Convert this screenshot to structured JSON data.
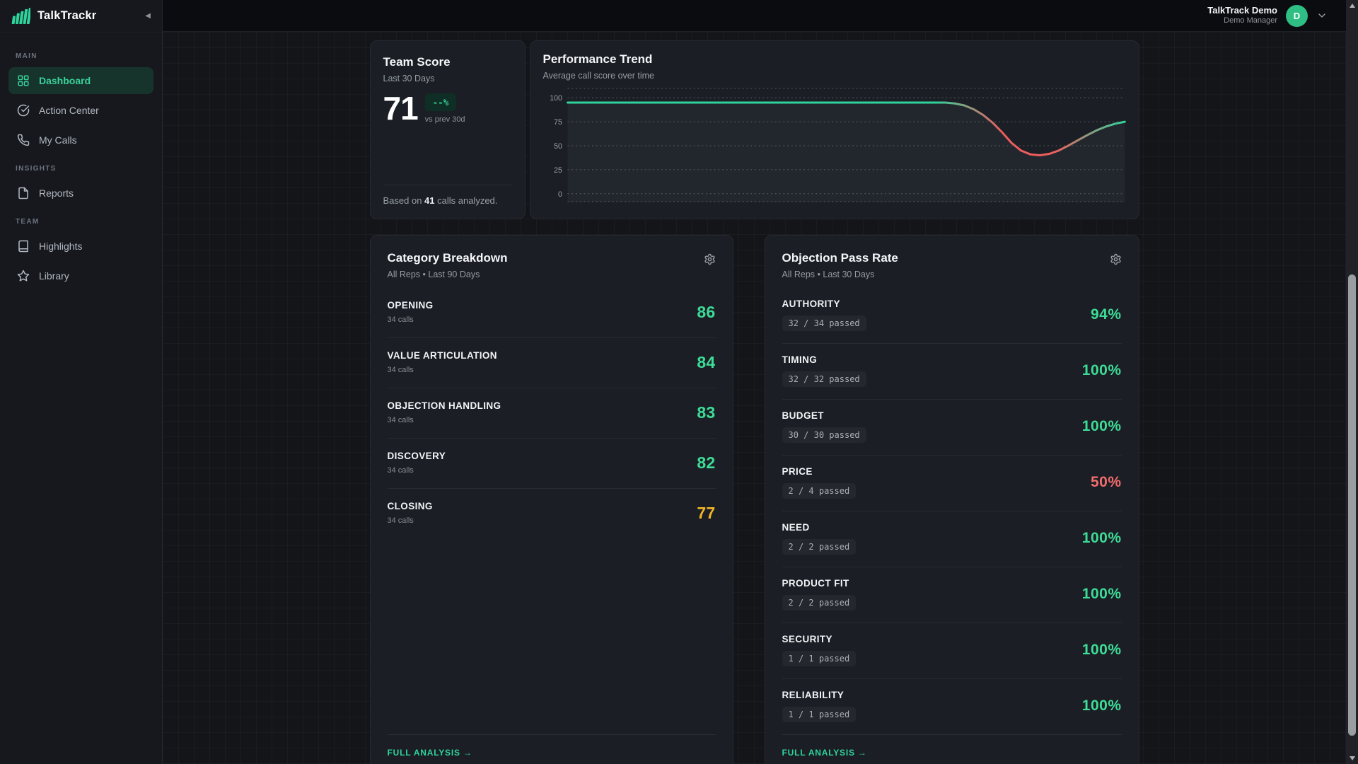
{
  "app": {
    "name": "TalkTrackr",
    "logo_icon": "bars-logo-icon",
    "collapse_icon": "collapse-left-icon"
  },
  "header": {
    "user_name": "TalkTrack Demo",
    "user_role": "Demo Manager",
    "avatar_initial": "D",
    "chevron_icon": "chevron-down-icon"
  },
  "sidebar": {
    "sections": [
      {
        "label": "MAIN",
        "items": [
          {
            "label": "Dashboard",
            "icon": "dashboard-grid-icon",
            "active": true
          },
          {
            "label": "Action Center",
            "icon": "check-circle-icon",
            "active": false
          },
          {
            "label": "My Calls",
            "icon": "phone-icon",
            "active": false
          }
        ]
      },
      {
        "label": "INSIGHTS",
        "items": [
          {
            "label": "Reports",
            "icon": "file-icon",
            "active": false
          }
        ]
      },
      {
        "label": "TEAM",
        "items": [
          {
            "label": "Highlights",
            "icon": "book-icon",
            "active": false
          },
          {
            "label": "Library",
            "icon": "star-icon",
            "active": false
          }
        ]
      }
    ]
  },
  "team_score": {
    "title": "Team Score",
    "period": "Last 30 Days",
    "score": "71",
    "delta": "--%",
    "delta_caption": "vs prev 30d",
    "footnote_prefix": "Based on ",
    "footnote_count": "41",
    "footnote_suffix": " calls analyzed."
  },
  "chart_data": {
    "type": "line",
    "title": "Performance Trend",
    "subtitle": "Average call score over time",
    "series": [
      {
        "name": "Average call score",
        "values": [
          95,
          95,
          95,
          95,
          95,
          95,
          95,
          95,
          95,
          95,
          95,
          95,
          95,
          95,
          95,
          95,
          95,
          95,
          95,
          95,
          95,
          95,
          95,
          95,
          95,
          95,
          95,
          95,
          95,
          95,
          95,
          95,
          95,
          95,
          95,
          95,
          95,
          95,
          95,
          95,
          95,
          94,
          92,
          88,
          82,
          74,
          64,
          53,
          45,
          41,
          40,
          41.5,
          45,
          50,
          55.5,
          61,
          66,
          70,
          73,
          75
        ]
      }
    ],
    "yticks": [
      0,
      25,
      50,
      75,
      100
    ],
    "ylim": [
      -10,
      110
    ],
    "grid": "dashed-horizontal",
    "legend": "none",
    "line_color_normal": "#2fd49c",
    "line_color_dip": "#ee5d5d",
    "grid_color": "#54575d",
    "tick_color": "#9aa1ab"
  },
  "category": {
    "title": "Category Breakdown",
    "subtitle": "All Reps • Last 90 Days",
    "gear_icon": "gear-icon",
    "rows": [
      {
        "label": "OPENING",
        "calls": "34 calls",
        "score": "86",
        "color": "#3ddc97"
      },
      {
        "label": "VALUE ARTICULATION",
        "calls": "34 calls",
        "score": "84",
        "color": "#3ddc97"
      },
      {
        "label": "OBJECTION HANDLING",
        "calls": "34 calls",
        "score": "83",
        "color": "#3ddc97"
      },
      {
        "label": "DISCOVERY",
        "calls": "34 calls",
        "score": "82",
        "color": "#3ddc97"
      },
      {
        "label": "CLOSING",
        "calls": "34 calls",
        "score": "77",
        "color": "#f0b429"
      }
    ],
    "footer_link": "FULL ANALYSIS →"
  },
  "objection": {
    "title": "Objection Pass Rate",
    "subtitle": "All Reps • Last 30 Days",
    "gear_icon": "gear-icon",
    "rows": [
      {
        "label": "AUTHORITY",
        "detail": "32 / 34 passed",
        "rate": "94%",
        "color": "#3ddc97"
      },
      {
        "label": "TIMING",
        "detail": "32 / 32 passed",
        "rate": "100%",
        "color": "#3ddc97"
      },
      {
        "label": "BUDGET",
        "detail": "30 / 30 passed",
        "rate": "100%",
        "color": "#3ddc97"
      },
      {
        "label": "PRICE",
        "detail": "2 / 4 passed",
        "rate": "50%",
        "color": "#f26d6d"
      },
      {
        "label": "NEED",
        "detail": "2 / 2 passed",
        "rate": "100%",
        "color": "#3ddc97"
      },
      {
        "label": "PRODUCT FIT",
        "detail": "2 / 2 passed",
        "rate": "100%",
        "color": "#3ddc97"
      },
      {
        "label": "SECURITY",
        "detail": "1 / 1 passed",
        "rate": "100%",
        "color": "#3ddc97"
      },
      {
        "label": "RELIABILITY",
        "detail": "1 / 1 passed",
        "rate": "100%",
        "color": "#3ddc97"
      }
    ],
    "footer_link": "FULL ANALYSIS →"
  },
  "colors": {
    "accent_green": "#2fd49c",
    "score_green": "#3ddc97",
    "warn_amber": "#f0b429",
    "fail_red": "#f26d6d",
    "card_bg": "#1b1e24",
    "page_bg": "#131519"
  }
}
